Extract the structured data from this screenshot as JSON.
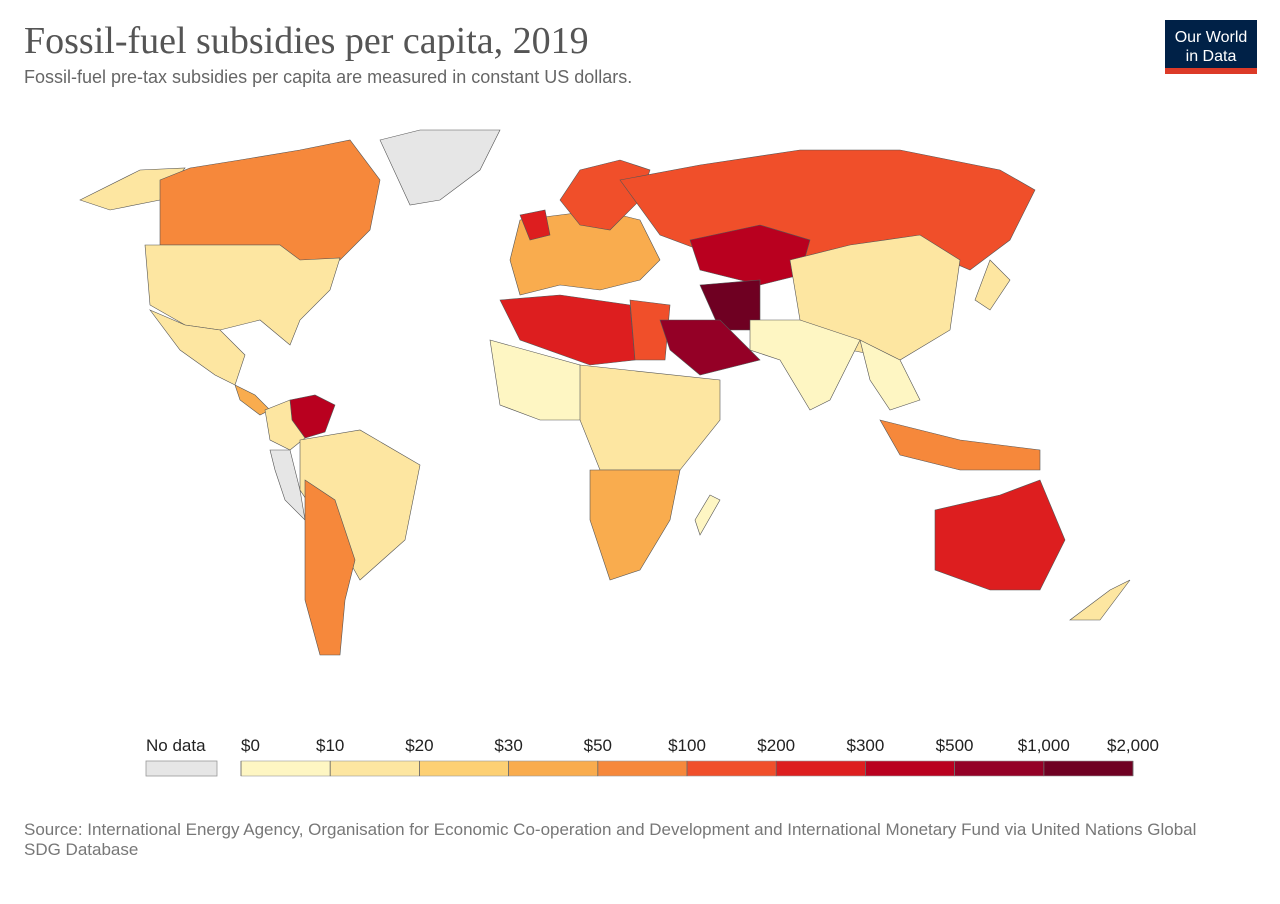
{
  "header": {
    "title": "Fossil-fuel subsidies per capita, 2019",
    "subtitle": "Fossil-fuel pre-tax subsidies per capita are measured in constant US dollars."
  },
  "logo": {
    "lines": [
      "Our World",
      "in Data"
    ]
  },
  "legend": {
    "no_data": "No data",
    "ticks": [
      {
        "value": 0,
        "label": "$0"
      },
      {
        "value": 10,
        "label": "$10"
      },
      {
        "value": 20,
        "label": "$20"
      },
      {
        "value": 30,
        "label": "$30"
      },
      {
        "value": 50,
        "label": "$50"
      },
      {
        "value": 100,
        "label": "$100"
      },
      {
        "value": 200,
        "label": "$200"
      },
      {
        "value": 300,
        "label": "$300"
      },
      {
        "value": 500,
        "label": "$500"
      },
      {
        "value": 1000,
        "label": "$1,000"
      },
      {
        "value": 2000,
        "label": "$2,000"
      }
    ],
    "colors": [
      "#fef6c3",
      "#fde6a1",
      "#fdd074",
      "#f9ac4e",
      "#f6883b",
      "#f04f2a",
      "#dd1e1f",
      "#b9001f",
      "#940026",
      "#6f0022"
    ],
    "no_data_color": "#e6e6e6"
  },
  "source": "Source: International Energy Agency, Organisation for Economic Co-operation and Development and International Monetary Fund via United Nations Global SDG Database"
}
